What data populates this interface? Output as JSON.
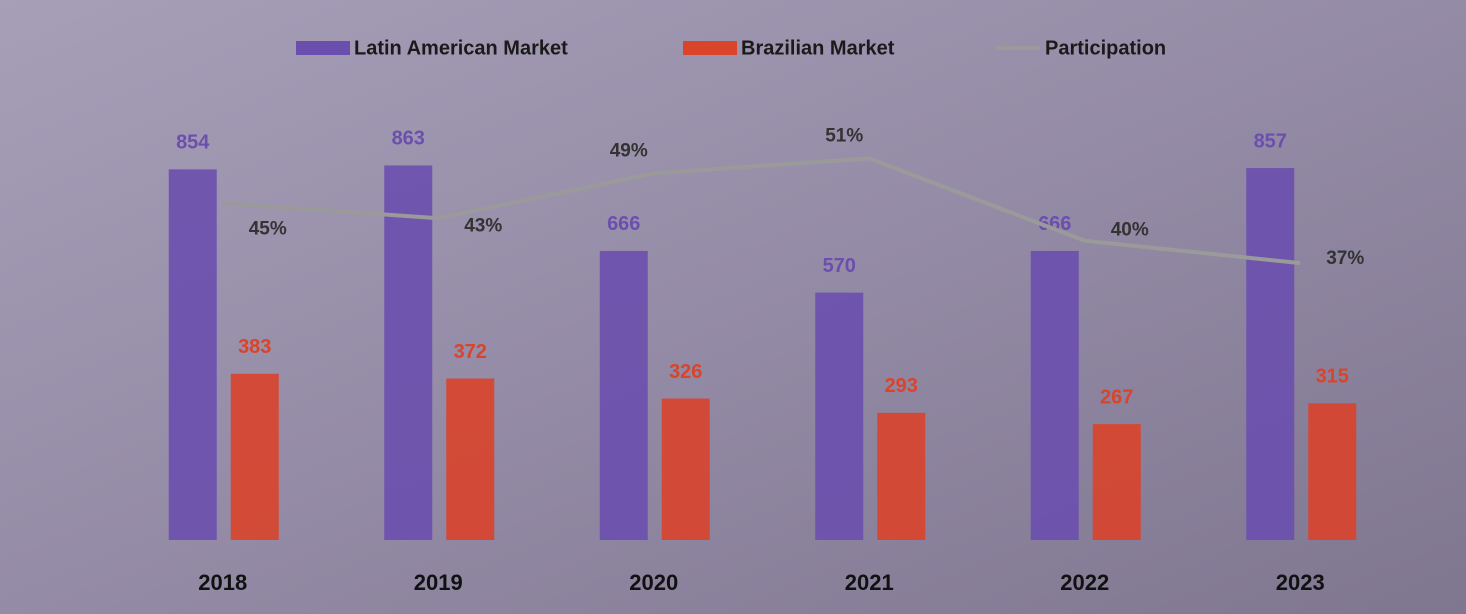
{
  "chart_data": {
    "type": "bar",
    "categories": [
      "2018",
      "2019",
      "2020",
      "2021",
      "2022",
      "2023"
    ],
    "series": [
      {
        "name": "Latin American Market",
        "color": "#6b4fae",
        "values": [
          854,
          863,
          666,
          570,
          666,
          857
        ]
      },
      {
        "name": "Brazilian Market",
        "color": "#d9442b",
        "values": [
          383,
          372,
          326,
          293,
          267,
          315
        ]
      },
      {
        "name": "Participation",
        "type": "line",
        "axis": "y2",
        "color": "#9a9a9a",
        "values": [
          45,
          43,
          49,
          51,
          40,
          37
        ],
        "value_labels": [
          "45%",
          "43%",
          "49%",
          "51%",
          "40%",
          "37%"
        ]
      }
    ],
    "ylim": [
      0,
      1000
    ],
    "y2lim": [
      0,
      58
    ],
    "legend": "top"
  }
}
